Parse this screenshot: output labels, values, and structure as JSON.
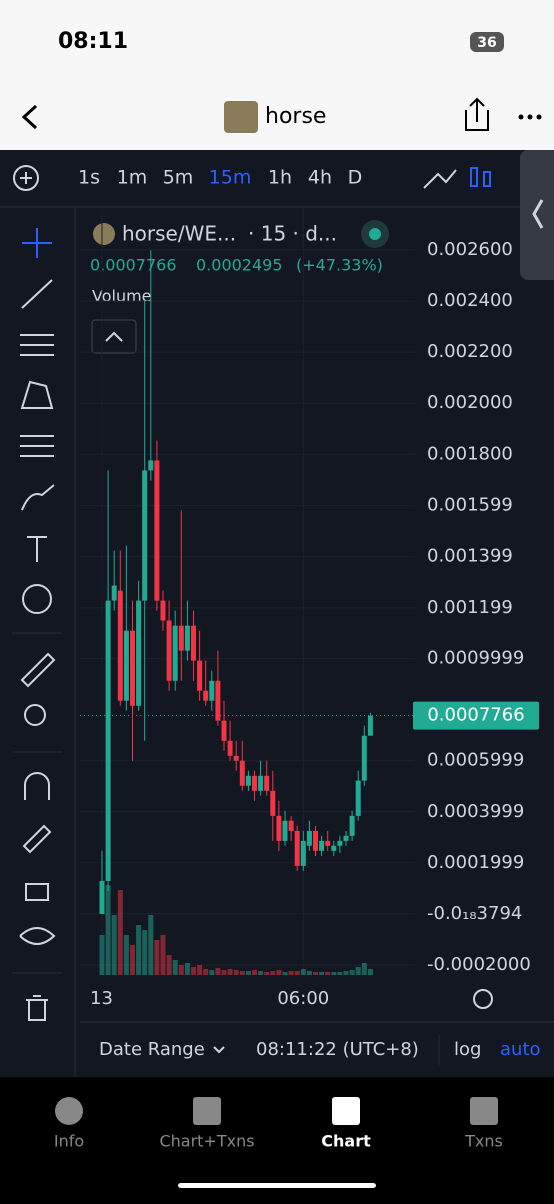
{
  "status_bar": {
    "time": "08:11",
    "battery": "36"
  },
  "header": {
    "title": "horse"
  },
  "toolbar": {
    "timeframes": [
      "1s",
      "1m",
      "5m",
      "15m",
      "1h",
      "4h",
      "D"
    ],
    "active": "15m"
  },
  "legend": {
    "symbol": "horse/WE...",
    "interval": "· 15 · d...",
    "price": "0.0007766",
    "change": "0.0002495",
    "change_pct": "(+47.33%)",
    "volume": "Volume"
  },
  "chart_data": {
    "type": "candlestick",
    "categories": [
      "13",
      null,
      null,
      null,
      null,
      null,
      null,
      null,
      null,
      null,
      null,
      null,
      null,
      null,
      null,
      null,
      null,
      null,
      null,
      null,
      null,
      null,
      null,
      null,
      null,
      null,
      null,
      null,
      null,
      null,
      null,
      null,
      null,
      "06:00",
      null,
      null,
      null,
      null,
      null,
      null,
      null,
      null,
      null,
      null,
      null
    ],
    "open": [
      0,
      0.000129,
      0.001227,
      0.001266,
      0.000835,
      0.001109,
      0.000815,
      0.001227,
      0.001737,
      0.001776,
      0.001227,
      0.001149,
      0.000913,
      0.001129,
      0.001031,
      0.001129,
      0.000992,
      0.000874,
      0.000835,
      0.000913,
      0.000757,
      0.000678,
      0.000619,
      0.0006,
      0.000502,
      0.000541,
      0.000482,
      0.000541,
      0.000482,
      0.000384,
      0.000286,
      0.000365,
      0.000325,
      0.000188,
      0.000267,
      0.000325,
      0.000247,
      0.000286,
      0.000247,
      0.000267,
      0.000286,
      0.000306,
      0.000384,
      0.000522,
      0.000698
    ],
    "high": [
      0.000247,
      0.001737,
      0.001423,
      0.001423,
      0.001443,
      0.001227,
      0.001305,
      0.002403,
      0.002599,
      0.001854,
      0.001266,
      0.001227,
      0.001188,
      0.00158,
      0.001227,
      0.001188,
      0.001109,
      0.000992,
      0.000953,
      0.001031,
      0.000835,
      0.000757,
      0.000678,
      0.000678,
      0.000561,
      0.000561,
      0.0006,
      0.0006,
      0.000561,
      0.000443,
      0.000404,
      0.000384,
      0.000345,
      0.000325,
      0.000365,
      0.000345,
      0.000306,
      0.000325,
      0.000286,
      0.000306,
      0.000325,
      0.000404,
      0.000561,
      0.000737,
      0.000788
    ],
    "low": [
      0,
      9e-05,
      0.001188,
      0.000815,
      0.000796,
      0.0006,
      0.000796,
      0.000678,
      0.001697,
      0.001188,
      0.001109,
      0.000874,
      0.000874,
      0.000913,
      0.000992,
      0.000913,
      0.000835,
      0.000815,
      0.000796,
      0.000737,
      0.000639,
      0.0006,
      0.000561,
      0.000482,
      0.000482,
      0.000443,
      0.000463,
      0.000463,
      0.000286,
      0.000247,
      0.000267,
      0.000286,
      0.000169,
      0.000169,
      0.000247,
      0.000227,
      0.000227,
      0.000247,
      0.000227,
      0.000239,
      0.000267,
      0.000286,
      0.000365,
      0.000502,
      0.000698
    ],
    "close": [
      0.000129,
      0.001227,
      0.001286,
      0.000835,
      0.001109,
      0.000815,
      0.001227,
      0.001737,
      0.001776,
      0.001227,
      0.001149,
      0.000913,
      0.001129,
      0.001031,
      0.001129,
      0.000992,
      0.000874,
      0.000835,
      0.000913,
      0.000757,
      0.000678,
      0.000619,
      0.0006,
      0.000502,
      0.000541,
      0.000482,
      0.000541,
      0.000482,
      0.000384,
      0.000286,
      0.000365,
      0.000325,
      0.000188,
      0.000286,
      0.000325,
      0.000247,
      0.000286,
      0.000267,
      0.000267,
      0.000286,
      0.000306,
      0.000384,
      0.000522,
      0.000698,
      0.0007766
    ],
    "volume": [
      40,
      90,
      60,
      85,
      40,
      30,
      50,
      45,
      60,
      35,
      40,
      20,
      15,
      10,
      12,
      8,
      10,
      6,
      5,
      7,
      5,
      6,
      5,
      4,
      4,
      5,
      4,
      3,
      4,
      5,
      3,
      4,
      4,
      6,
      4,
      3,
      3,
      3,
      3,
      3,
      4,
      5,
      8,
      12,
      6
    ],
    "up_color": "#22ab94",
    "down_color": "#f23645",
    "ylim": [
      -0.0002,
      0.0026
    ],
    "yticks": [
      {
        "value": 0.0026,
        "label": "0.002600"
      },
      {
        "value": 0.0024,
        "label": "0.002400"
      },
      {
        "value": 0.0022,
        "label": "0.002200"
      },
      {
        "value": 0.002,
        "label": "0.002000"
      },
      {
        "value": 0.0018,
        "label": "0.001800"
      },
      {
        "value": 0.001599,
        "label": "0.001599"
      },
      {
        "value": 0.001399,
        "label": "0.001399"
      },
      {
        "value": 0.001199,
        "label": "0.001199"
      },
      {
        "value": 0.0009999,
        "label": "0.0009999"
      },
      {
        "value": 0.0005999,
        "label": "0.0005999"
      },
      {
        "value": 0.0003999,
        "label": "0.0003999"
      },
      {
        "value": 0.0001999,
        "label": "0.0001999"
      },
      {
        "value": -3.794e-19,
        "label": "-0.0₁₈3794"
      },
      {
        "value": -0.0002,
        "label": "-0.0002000"
      }
    ],
    "last_price": {
      "value": 0.0007766,
      "label": "0.0007766"
    }
  },
  "footer": {
    "date_range": "Date Range",
    "time": "08:11:22 (UTC+8)",
    "log": "log",
    "auto": "auto"
  },
  "tabs": [
    "Info",
    "Chart+Txns",
    "Chart",
    "Txns"
  ],
  "active_tab": "Chart"
}
